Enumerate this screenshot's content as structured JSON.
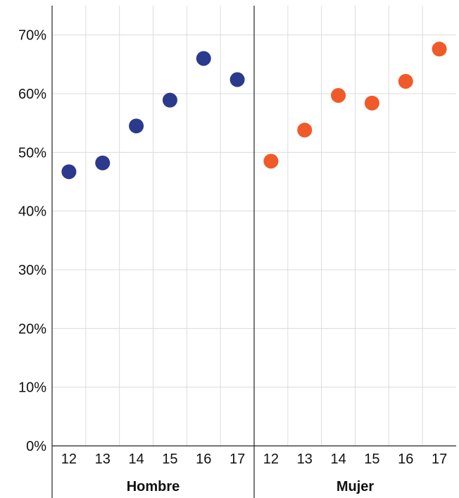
{
  "chart_data": {
    "type": "scatter",
    "y_ticks": [
      "0%",
      "10%",
      "20%",
      "30%",
      "40%",
      "50%",
      "60%",
      "70%"
    ],
    "ylim": [
      0,
      75
    ],
    "grid": true,
    "categories": [
      "12",
      "13",
      "14",
      "15",
      "16",
      "17"
    ],
    "panels": [
      {
        "label": "Hombre",
        "color": "#2b3a8c",
        "values": [
          46.7,
          48.2,
          54.5,
          58.9,
          66.0,
          62.4
        ]
      },
      {
        "label": "Mujer",
        "color": "#f05a28",
        "values": [
          48.5,
          53.8,
          59.7,
          58.4,
          62.1,
          67.6
        ]
      }
    ]
  }
}
